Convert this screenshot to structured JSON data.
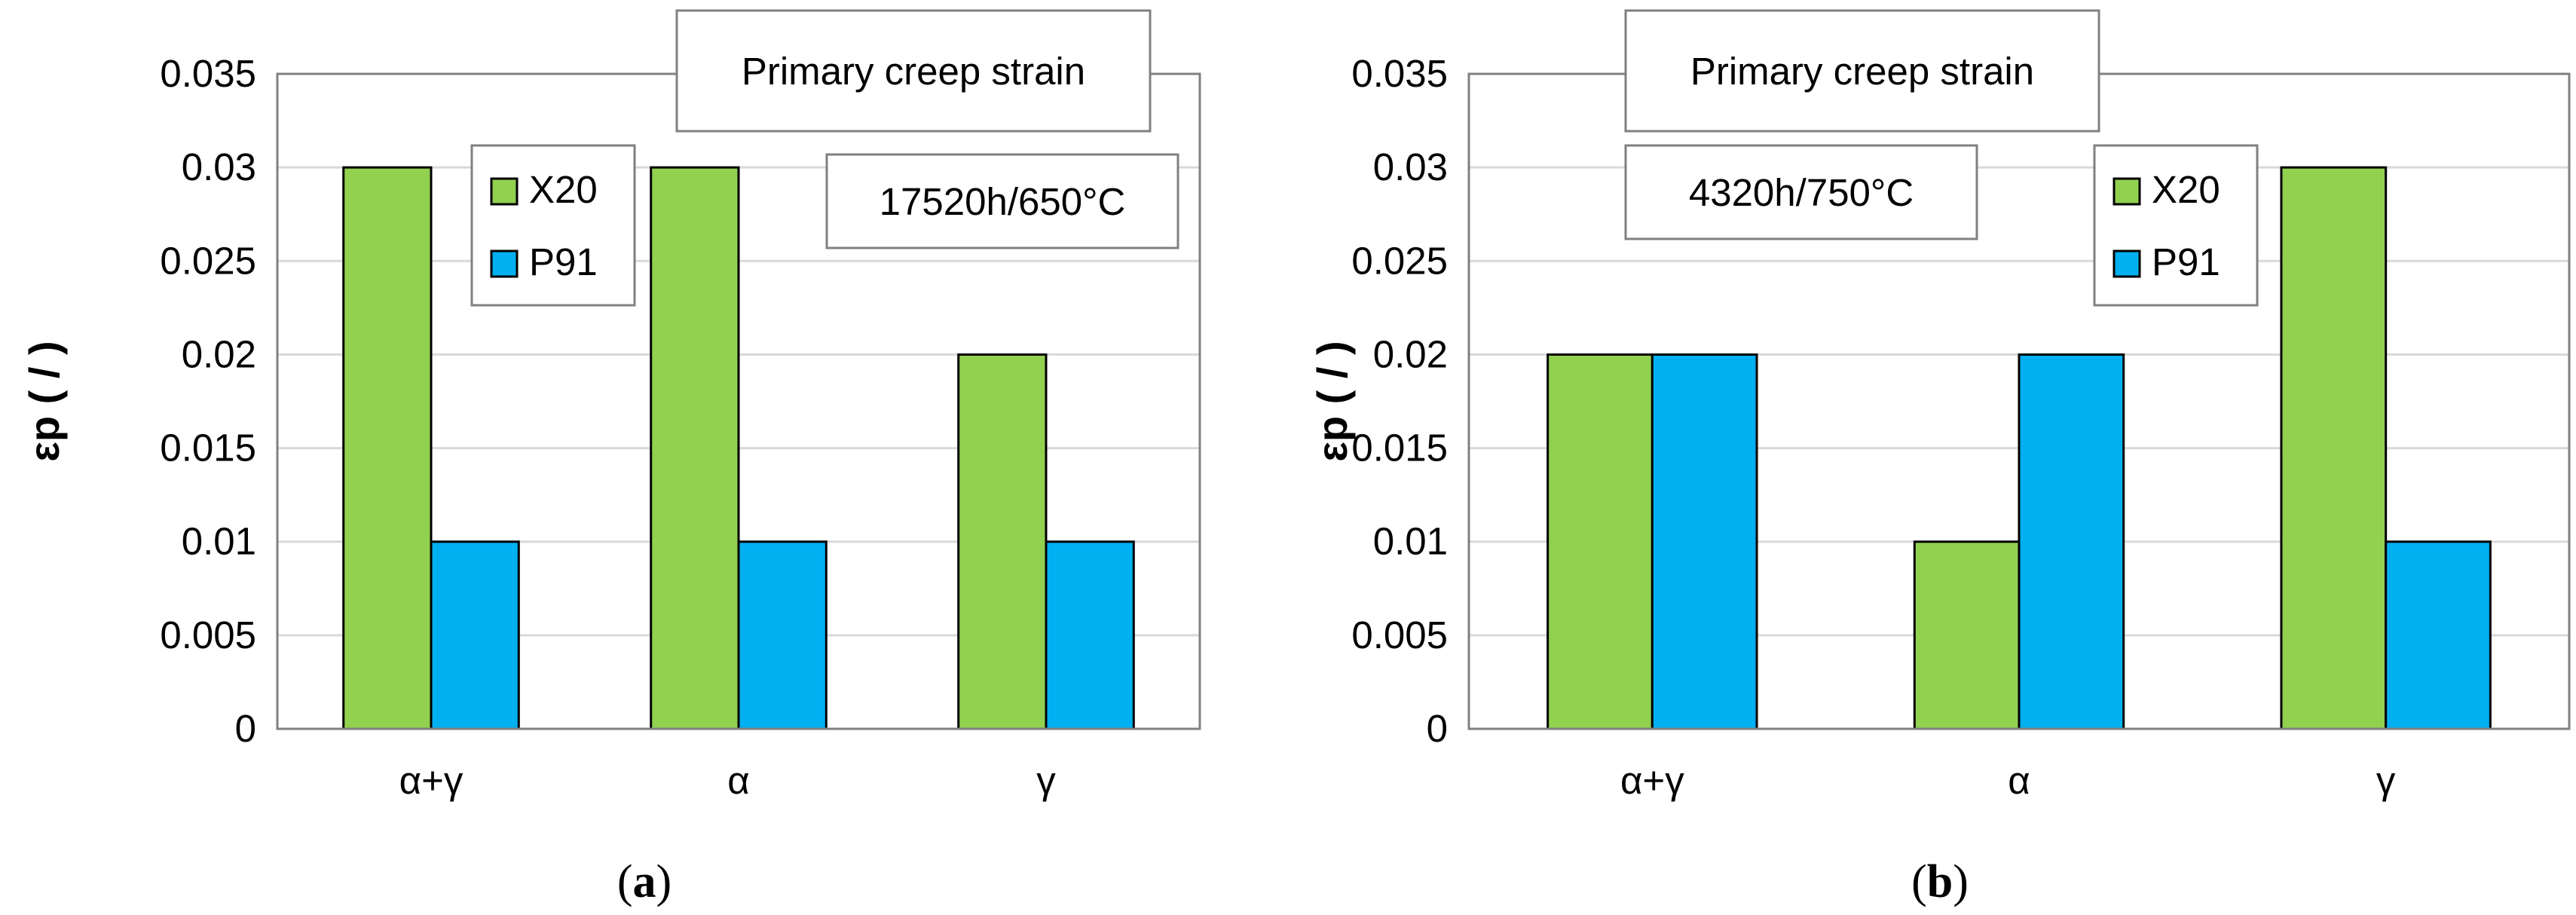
{
  "colors": {
    "x20": "#92d050",
    "p91": "#00b0f0",
    "grid": "#d9d9d9",
    "axis": "#808080",
    "text": "#000000"
  },
  "chart_data": [
    {
      "type": "bar",
      "panel_label": "(a)",
      "label_letter": "a",
      "title": "Primary creep strain",
      "annotation": "17520h/650°C",
      "ylabel": "εp ( / )",
      "xlabel": "",
      "ylim": [
        0,
        0.035
      ],
      "yticks": [
        "0",
        "0.005",
        "0.01",
        "0.015",
        "0.02",
        "0.025",
        "0.03",
        "0.035"
      ],
      "categories": [
        "α+γ",
        "α",
        "γ"
      ],
      "series": [
        {
          "name": "X20",
          "values": [
            0.03,
            0.03,
            0.02
          ]
        },
        {
          "name": "P91",
          "values": [
            0.01,
            0.01,
            0.01
          ]
        }
      ],
      "grid": true,
      "legend_position": "top-left"
    },
    {
      "type": "bar",
      "panel_label": "(b)",
      "label_letter": "b",
      "title": "Primary creep strain",
      "annotation": "4320h/750°C",
      "ylabel": "εp ( / )",
      "xlabel": "",
      "ylim": [
        0,
        0.035
      ],
      "yticks": [
        "0",
        "0.005",
        "0.01",
        "0.015",
        "0.02",
        "0.025",
        "0.03",
        "0.035"
      ],
      "categories": [
        "α+γ",
        "α",
        "γ"
      ],
      "series": [
        {
          "name": "X20",
          "values": [
            0.02,
            0.01,
            0.03
          ]
        },
        {
          "name": "P91",
          "values": [
            0.02,
            0.02,
            0.01
          ]
        }
      ],
      "grid": true,
      "legend_position": "top-right"
    }
  ]
}
